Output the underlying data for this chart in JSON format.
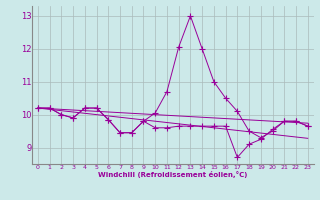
{
  "x": [
    0,
    1,
    2,
    3,
    4,
    5,
    6,
    7,
    8,
    9,
    10,
    11,
    12,
    13,
    14,
    15,
    16,
    17,
    18,
    19,
    20,
    21,
    22,
    23
  ],
  "line1": [
    10.2,
    10.2,
    10.0,
    9.9,
    10.2,
    10.2,
    9.85,
    9.45,
    9.45,
    9.8,
    10.05,
    10.7,
    12.05,
    13.0,
    12.0,
    11.0,
    10.5,
    10.1,
    9.5,
    9.3,
    9.5,
    9.8,
    9.8,
    9.65
  ],
  "line2": [
    10.2,
    10.2,
    10.0,
    9.9,
    10.2,
    10.2,
    9.85,
    9.45,
    9.45,
    9.8,
    9.6,
    9.6,
    9.65,
    9.65,
    9.65,
    9.65,
    9.65,
    8.7,
    9.1,
    9.25,
    9.55,
    9.8,
    9.8,
    9.65
  ],
  "trend1": [
    10.2,
    10.16,
    10.12,
    10.08,
    10.04,
    10.0,
    9.96,
    9.92,
    9.88,
    9.84,
    9.8,
    9.76,
    9.72,
    9.68,
    9.64,
    9.6,
    9.56,
    9.52,
    9.48,
    9.44,
    9.4,
    9.36,
    9.32,
    9.28
  ],
  "trend2": [
    10.2,
    10.18,
    10.16,
    10.14,
    10.12,
    10.1,
    10.08,
    10.06,
    10.04,
    10.02,
    10.0,
    9.98,
    9.96,
    9.94,
    9.92,
    9.9,
    9.88,
    9.86,
    9.84,
    9.82,
    9.8,
    9.78,
    9.76,
    9.74
  ],
  "bg_color": "#cce9e9",
  "line_color": "#990099",
  "grid_color": "#aabbbb",
  "ylim": [
    8.5,
    13.3
  ],
  "yticks": [
    9,
    10,
    11,
    12,
    13
  ],
  "xlabel": "Windchill (Refroidissement éolien,°C)",
  "marker": "+"
}
